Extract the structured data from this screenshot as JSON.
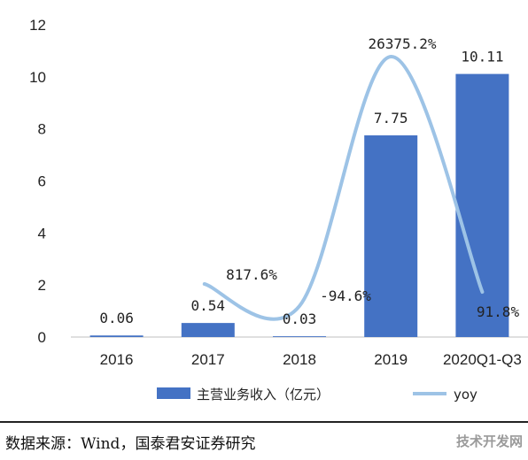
{
  "chart_data": {
    "type": "bar",
    "categories": [
      "2016",
      "2017",
      "2018",
      "2019",
      "2020Q1-Q3"
    ],
    "series": [
      {
        "name": "主营业务收入（亿元）",
        "type": "bar",
        "values": [
          0.06,
          0.54,
          0.03,
          7.75,
          10.11
        ],
        "labels": [
          "0.06",
          "0.54",
          "0.03",
          "7.75",
          "10.11"
        ]
      },
      {
        "name": "yoy",
        "type": "line",
        "values": [
          null,
          817.6,
          -94.6,
          26375.2,
          91.8
        ],
        "labels": [
          "",
          "817.6%",
          "-94.6%",
          "26375.2%",
          "91.8%"
        ]
      }
    ],
    "ylim": [
      0,
      12
    ],
    "yticks": [
      "0",
      "2",
      "4",
      "6",
      "8",
      "10",
      "12"
    ],
    "legend_position": "bottom",
    "colors": {
      "bar": "#4472c4",
      "line": "#9dc3e6"
    }
  },
  "source": "数据来源：Wind，国泰君安证券研究",
  "watermark": "技术开发网"
}
